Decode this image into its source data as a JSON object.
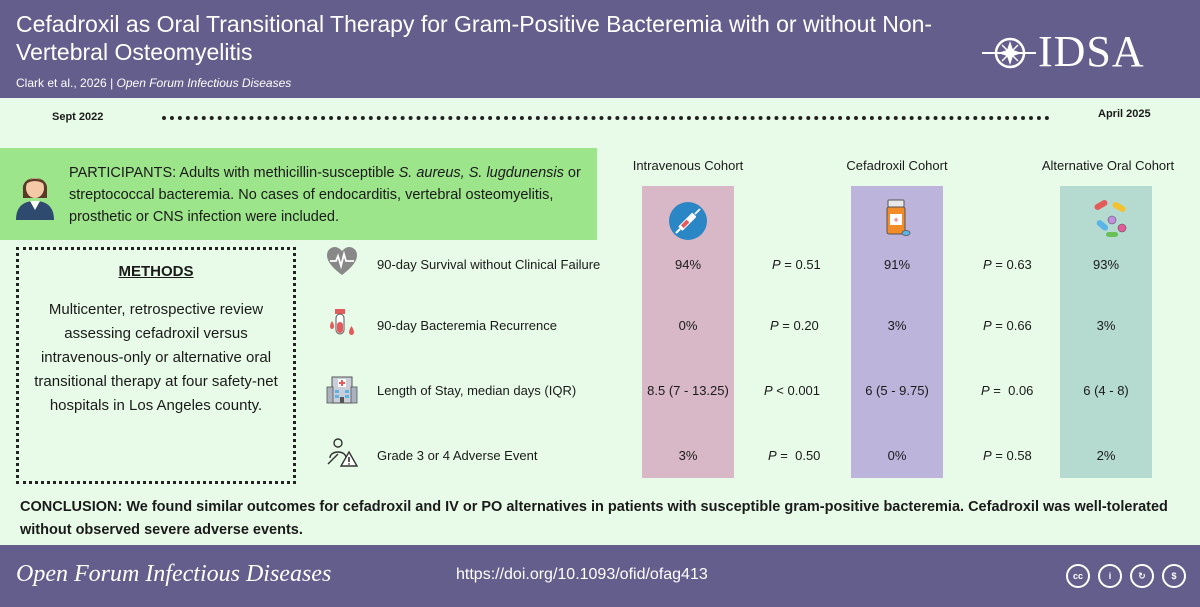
{
  "header": {
    "title": "Cefadroxil as Oral Transitional Therapy for Gram-Positive Bacteremia with or without Non-Vertebral Osteomyelitis",
    "authors": "Clark et al., 2026",
    "journal": "Open Forum Infectious Diseases",
    "logo_text": "IDSA"
  },
  "timeline": {
    "start": "Sept 2022",
    "end": "April 2025"
  },
  "participants": {
    "label": "PARTICIPANTS:",
    "text_a": "Adults with methicillin-susceptible ",
    "organisms": "S. aureus, S. lugdunensis",
    "text_b": " or streptococcal bacteremia. No cases of endocarditis, vertebral osteomyelitis, prosthetic or CNS infection were included."
  },
  "methods": {
    "heading": "METHODS",
    "text": "Multicenter, retrospective review assessing cefadroxil versus intravenous-only or alternative oral transitional therapy at four safety-net hospitals in Los Angeles county."
  },
  "cohorts": [
    "Intravenous Cohort",
    "Cefadroxil Cohort",
    "Alternative Oral Cohort"
  ],
  "p_symbol": "P",
  "rows": [
    {
      "label": "90-day Survival without Clinical Failure",
      "iv": "94%",
      "p1": " = 0.51",
      "cef": "91%",
      "p2": " = 0.63",
      "alt": "93%"
    },
    {
      "label": "90-day Bacteremia Recurrence",
      "iv": "0%",
      "p1": " = 0.20",
      "cef": "3%",
      "p2": " = 0.66",
      "alt": "3%"
    },
    {
      "label": "Length of Stay, median days (IQR)",
      "iv": "8.5 (7 - 13.25)",
      "p1": " < 0.001",
      "cef": "6 (5 - 9.75)",
      "p2": " =  0.06",
      "alt": "6 (4 - 8)"
    },
    {
      "label": "Grade 3 or 4 Adverse Event",
      "iv": "3%",
      "p1": " =  0.50",
      "cef": "0%",
      "p2": " = 0.58",
      "alt": "2%"
    }
  ],
  "conclusion": "CONCLUSION: We found similar outcomes for cefadroxil and IV or PO alternatives in patients with susceptible gram-positive bacteremia.  Cefadroxil was well-tolerated without observed severe adverse events.",
  "footer": {
    "journal": "Open Forum Infectious Diseases",
    "doi": "https://doi.org/10.1093/ofid/ofag413",
    "license_icons": [
      "cc-icon",
      "attribution-icon",
      "share-alike-icon",
      "non-commercial-icon"
    ],
    "license_labels": [
      "cc",
      "i",
      "↻",
      "$"
    ]
  },
  "colors": {
    "header": "#645e8c",
    "background": "#e8fbe8",
    "participants": "#9de58a",
    "iv": "#d8b8c6",
    "cefadroxil": "#bdb4dc",
    "alternative": "#b5dad0"
  }
}
